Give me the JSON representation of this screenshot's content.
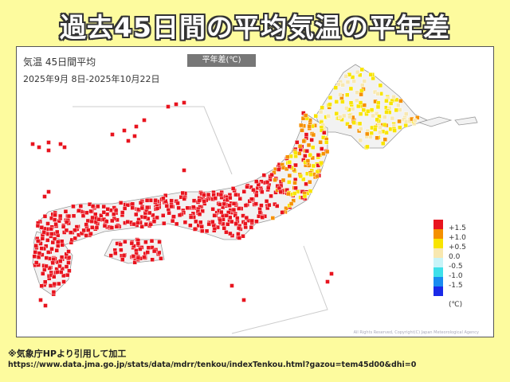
{
  "title": "過去45日間の平均気温の平年差",
  "map": {
    "heading": "気温 45日間平均",
    "period": "2025年9月 8日-2025年10月22日",
    "badge": "平年差(℃)",
    "copyright": "All Rights Reserved, Copyright(C) Japan Meteorological Agency",
    "legend": {
      "items": [
        {
          "label": "+1.5",
          "color": "#e8141e"
        },
        {
          "label": "+1.0",
          "color": "#f59000"
        },
        {
          "label": "+0.5",
          "color": "#f8e400"
        },
        {
          "label": "0.0",
          "color": "#f8e8b0"
        },
        {
          "label": "-0.5",
          "color": "#c8f4f8"
        },
        {
          "label": "-1.0",
          "color": "#3ee0ea"
        },
        {
          "label": "-1.5",
          "color": "#1a8cf0"
        },
        {
          "label": "",
          "color": "#1a2ae8"
        }
      ],
      "unit": "(℃)"
    }
  },
  "footer": {
    "note": "※気象庁HPより引用して加工",
    "url": "https://www.data.jma.go.jp/stats/data/mdrr/tenkou/indexTenkou.html?gazou=tem45d00&dhi=0"
  }
}
